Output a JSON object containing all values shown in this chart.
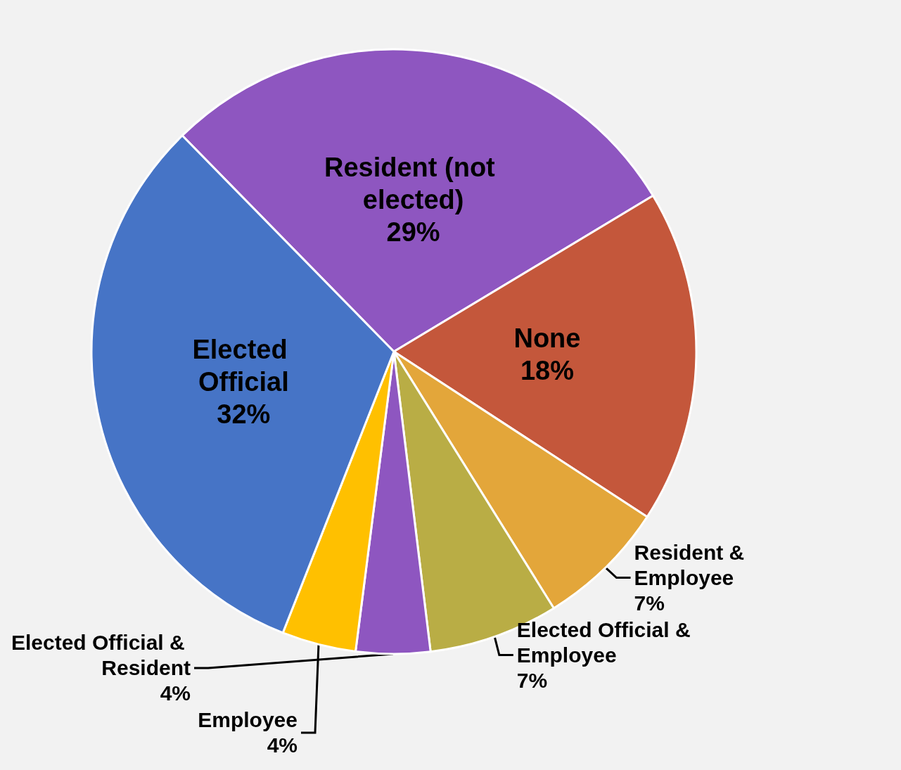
{
  "chart_data": {
    "type": "pie",
    "categories": [
      "Resident (not elected)",
      "None",
      "Resident & Employee",
      "Elected Official & Employee",
      "Elected Official & Resident",
      "Employee",
      "Elected Official"
    ],
    "values": [
      29,
      18,
      7,
      7,
      4,
      4,
      32
    ],
    "value_labels": [
      "29%",
      "18%",
      "7%",
      "7%",
      "4%",
      "4%",
      "32%"
    ],
    "colors": [
      "#8e56c0",
      "#c4573b",
      "#e3a63a",
      "#b9ad45",
      "#8e56c0",
      "#ffc000",
      "#4674c6"
    ]
  }
}
